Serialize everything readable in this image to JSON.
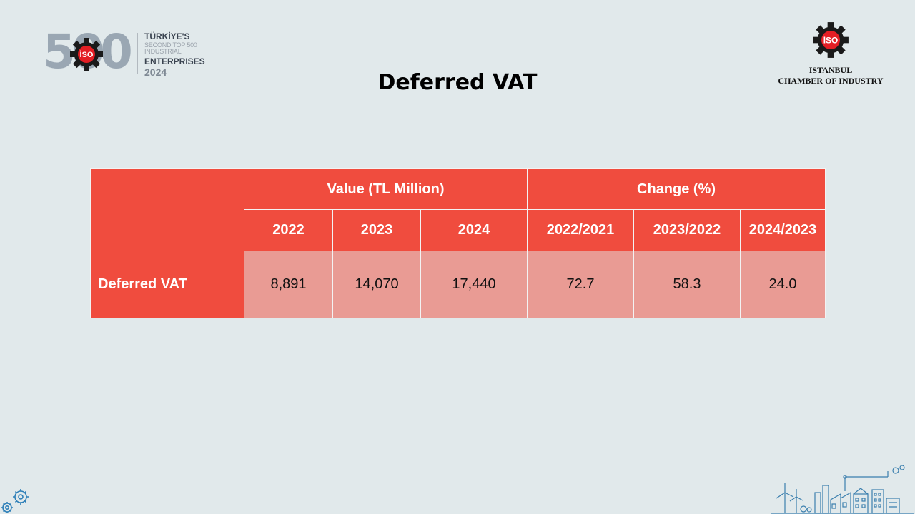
{
  "header": {
    "left_logo": {
      "number": "500",
      "badge": "İSO",
      "line1": "TÜRKİYE'S",
      "line2": "SECOND TOP 500 INDUSTRIAL",
      "line3": "ENTERPRISES",
      "year": "2024"
    },
    "right_logo": {
      "badge": "İSO",
      "line1": "ISTANBUL",
      "line2": "CHAMBER OF INDUSTRY"
    }
  },
  "title": "Deferred VAT",
  "table": {
    "group_headers": [
      "Value (TL Million)",
      "Change (%)"
    ],
    "column_headers": [
      "2022",
      "2023",
      "2024",
      "2022/2021",
      "2023/2022",
      "2024/2023"
    ],
    "rows": [
      {
        "label": "Deferred VAT",
        "values": [
          "8,891",
          "14,070",
          "17,440",
          "72.7",
          "58.3",
          "24.0"
        ]
      }
    ]
  },
  "colors": {
    "header_red": "#f04c3e",
    "cell_pink": "#e99b94",
    "background": "#e1e9eb",
    "badge_red": "#e31e24"
  },
  "icons": [
    "gear-badge-icon",
    "corner-gears-icon",
    "industrial-skyline-icon"
  ]
}
